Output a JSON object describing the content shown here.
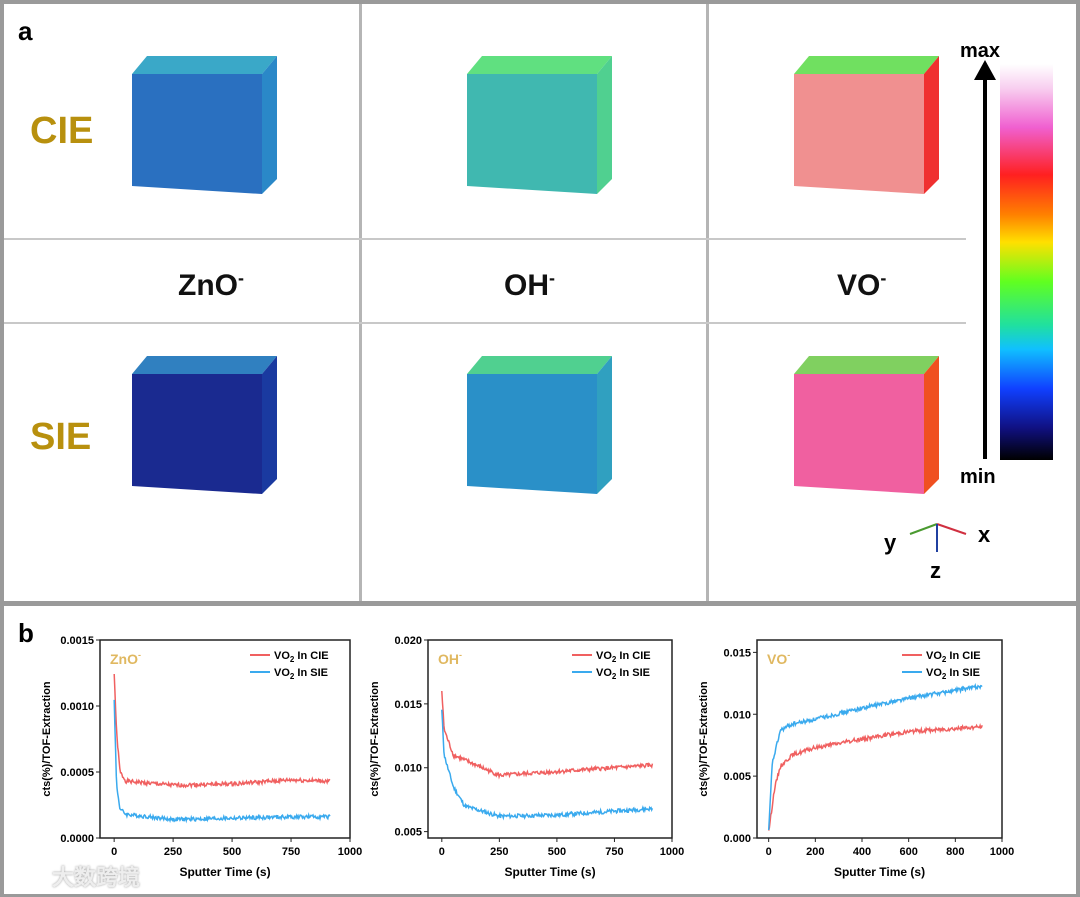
{
  "panel_a": {
    "letter": "a",
    "rows": [
      "CIE",
      "SIE"
    ],
    "columns": [
      {
        "base": "ZnO",
        "sup": "-"
      },
      {
        "base": "OH",
        "sup": "-"
      },
      {
        "base": "VO",
        "sup": "-"
      }
    ],
    "colorbar": {
      "max": "max",
      "min": "min"
    },
    "axes": {
      "x": "x",
      "y": "y",
      "z": "z"
    }
  },
  "panel_b": {
    "letter": "b"
  },
  "watermark": "大数跨境",
  "colors": {
    "cie": "#f06060",
    "sie": "#3aaaee",
    "label": "#e0b860"
  },
  "chart_data": [
    {
      "type": "line",
      "title": "ZnO-",
      "title_base": "ZnO",
      "title_sup": "-",
      "xlabel": "Sputter Time (s)",
      "ylabel": "cts(%)/TOF-Extraction",
      "xlim": [
        -60,
        1000
      ],
      "ylim": [
        0,
        0.0015
      ],
      "xticks": [
        0,
        250,
        500,
        750,
        1000
      ],
      "yticks": [
        0,
        0.0005,
        0.001,
        0.0015
      ],
      "ytick_labels": [
        "0.0000",
        "0.0005",
        "0.0010",
        "0.0015"
      ],
      "legend": "top-right",
      "series": [
        {
          "name": "VO2 In CIE",
          "x": [
            0,
            10,
            25,
            50,
            250,
            500,
            750,
            915
          ],
          "y": [
            0.00125,
            0.0008,
            0.0005,
            0.00043,
            0.0004,
            0.00041,
            0.00044,
            0.00043
          ]
        },
        {
          "name": "VO2 In SIE",
          "x": [
            0,
            10,
            25,
            50,
            250,
            500,
            750,
            915
          ],
          "y": [
            0.00105,
            0.0004,
            0.00022,
            0.00018,
            0.00014,
            0.00015,
            0.00016,
            0.00016
          ]
        }
      ]
    },
    {
      "type": "line",
      "title": "OH-",
      "title_base": "OH",
      "title_sup": "-",
      "xlabel": "Sputter Time (s)",
      "ylabel": "cts(%)/TOF-Extraction",
      "xlim": [
        -60,
        1000
      ],
      "ylim": [
        0.0045,
        0.02
      ],
      "xticks": [
        0,
        250,
        500,
        750,
        1000
      ],
      "yticks": [
        0.005,
        0.01,
        0.015,
        0.02
      ],
      "ytick_labels": [
        "0.005",
        "0.010",
        "0.015",
        "0.020"
      ],
      "legend": "top-right",
      "series": [
        {
          "name": "VO2 In CIE",
          "x": [
            0,
            10,
            50,
            250,
            500,
            915
          ],
          "y": [
            0.016,
            0.013,
            0.011,
            0.0094,
            0.0097,
            0.0102
          ]
        },
        {
          "name": "VO2 In SIE",
          "x": [
            0,
            10,
            50,
            100,
            250,
            500,
            915
          ],
          "y": [
            0.0145,
            0.011,
            0.0085,
            0.007,
            0.0062,
            0.0063,
            0.0068
          ]
        }
      ]
    },
    {
      "type": "line",
      "title": "VO-",
      "title_base": "VO",
      "title_sup": "-",
      "xlabel": "Sputter Time (s)",
      "ylabel": "cts(%)/TOF-Extraction",
      "xlim": [
        -50,
        1000
      ],
      "ylim": [
        0,
        0.016
      ],
      "xticks": [
        0,
        200,
        400,
        600,
        800,
        1000
      ],
      "yticks": [
        0,
        0.005,
        0.01,
        0.015
      ],
      "ytick_labels": [
        "0.000",
        "0.005",
        "0.010",
        "0.015"
      ],
      "legend": "top-right",
      "series": [
        {
          "name": "VO2 In CIE",
          "x": [
            0,
            25,
            50,
            100,
            200,
            400,
            600,
            915
          ],
          "y": [
            0.0005,
            0.004,
            0.0058,
            0.0067,
            0.0073,
            0.008,
            0.0086,
            0.009
          ]
        },
        {
          "name": "VO2 In SIE",
          "x": [
            0,
            15,
            50,
            100,
            200,
            400,
            600,
            915
          ],
          "y": [
            0.0005,
            0.006,
            0.0087,
            0.0092,
            0.0096,
            0.0105,
            0.0113,
            0.0123
          ]
        }
      ]
    }
  ]
}
